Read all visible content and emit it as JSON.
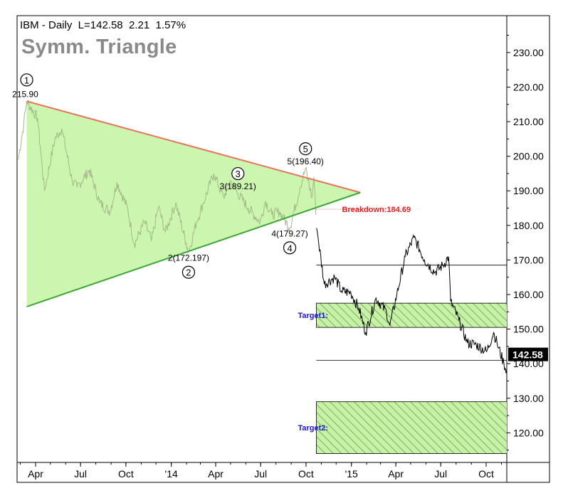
{
  "header": {
    "info_line": "IBM - Daily  L=142.58  2.21  1.57%",
    "pattern_title": "Symm. Triangle"
  },
  "colors": {
    "triangle_fill": "#ccf5b0",
    "upper_line": "#e8735a",
    "lower_line": "#3aa833",
    "price_in_pattern": "#a4b889",
    "price": "#000000",
    "breakdown_text": "#e02020",
    "target_text": "#1a1ad0",
    "target_fill": "#c8f0a8",
    "target_hatch": "#5ca83c"
  },
  "chart_data": {
    "type": "line",
    "title": "IBM - Daily",
    "ylim": [
      110,
      240
    ],
    "y_ticks": [
      "230.00",
      "220.00",
      "210.00",
      "200.00",
      "190.00",
      "180.00",
      "170.00",
      "160.00",
      "150.00",
      "140.00",
      "130.00",
      "120.00"
    ],
    "x_ticks": [
      "Apr",
      "Jul",
      "Oct",
      "'14",
      "Apr",
      "Jul",
      "Oct",
      "'15",
      "Apr",
      "Jul",
      "Oct"
    ],
    "last_price": "142.58",
    "series": [
      {
        "dates": [
          "2013-02-25",
          "2013-03-08",
          "2013-03-14",
          "2013-04-05",
          "2013-04-19",
          "2013-05-10",
          "2013-05-24",
          "2013-06-14",
          "2013-06-24",
          "2013-07-19",
          "2013-08-09",
          "2013-08-30",
          "2013-09-13",
          "2013-10-04",
          "2013-10-18",
          "2013-11-08",
          "2013-11-22",
          "2013-12-06",
          "2013-12-20",
          "2014-01-10",
          "2014-01-31",
          "2014-02-05",
          "2014-02-21",
          "2014-03-07",
          "2014-03-28",
          "2014-04-17",
          "2014-04-30",
          "2014-05-16",
          "2014-06-06",
          "2014-06-30",
          "2014-07-11",
          "2014-07-24",
          "2014-08-08",
          "2014-08-29",
          "2014-09-19",
          "2014-09-30",
          "2014-10-13",
          "2014-10-17",
          "2014-10-21",
          "2014-10-24",
          "2014-11-07",
          "2014-11-28",
          "2014-12-12",
          "2014-12-31",
          "2015-01-16",
          "2015-01-30",
          "2015-02-20",
          "2015-03-13",
          "2015-03-20",
          "2015-04-03",
          "2015-04-20",
          "2015-05-08",
          "2015-05-29",
          "2015-06-19",
          "2015-07-06",
          "2015-07-17",
          "2015-07-21",
          "2015-08-07",
          "2015-08-24",
          "2015-09-11",
          "2015-10-02",
          "2015-10-16",
          "2015-10-23",
          "2015-11-06",
          "2015-11-13",
          "2015-11-20",
          "2015-11-25"
        ],
        "values": [
          199.0,
          209.5,
          215.9,
          211.0,
          190.0,
          205.0,
          208.0,
          193.0,
          191.0,
          196.0,
          186.5,
          184.0,
          192.5,
          185.0,
          174.5,
          181.0,
          175.5,
          185.5,
          178.0,
          186.5,
          175.0,
          172.197,
          181.0,
          186.5,
          195.0,
          188.0,
          193.0,
          189.21,
          185.0,
          181.0,
          187.0,
          183.0,
          184.0,
          179.27,
          191.0,
          196.4,
          188.0,
          194.0,
          183.0,
          178.0,
          163.0,
          165.0,
          161.0,
          160.5,
          156.0,
          149.0,
          159.0,
          155.0,
          151.0,
          160.0,
          171.0,
          176.5,
          170.0,
          166.5,
          168.5,
          171.0,
          158.0,
          152.5,
          146.0,
          145.5,
          143.5,
          149.0,
          146.0,
          140.0,
          137.5,
          141.5,
          142.58
        ]
      }
    ],
    "pattern": {
      "upper_line": [
        [
          "2013-03-14",
          215.9
        ],
        [
          "2015-01-19",
          189.5
        ]
      ],
      "lower_line": [
        [
          "2013-03-14",
          156.5
        ],
        [
          "2015-01-19",
          189.5
        ]
      ],
      "pivots": [
        {
          "id": "1",
          "label": "215.90",
          "date": "2013-03-14",
          "value": 215.9,
          "position": "above"
        },
        {
          "id": "2",
          "label": "2(172.197)",
          "date": "2014-02-05",
          "value": 172.197,
          "position": "below"
        },
        {
          "id": "3",
          "label": "3(189.21)",
          "date": "2014-05-16",
          "value": 189.21,
          "position": "above"
        },
        {
          "id": "4",
          "label": "4(179.27)",
          "date": "2014-08-29",
          "value": 179.27,
          "position": "below"
        },
        {
          "id": "5",
          "label": "5(196.40)",
          "date": "2014-09-30",
          "value": 196.4,
          "position": "above"
        }
      ],
      "breakdown": {
        "label": "Breakdown:184.69",
        "value": 184.69,
        "from": "2014-10-22",
        "to": "2015-01-19"
      }
    },
    "horizontal_lines": [
      168.5,
      141.0
    ],
    "targets": [
      {
        "label": "Target1:",
        "top": 157.5,
        "bottom": 150.5,
        "from": "2014-10-22",
        "to": "2015-11-30"
      },
      {
        "label": "Target2:",
        "top": 129.0,
        "bottom": 114.0,
        "from": "2014-10-22",
        "to": "2015-11-30"
      }
    ]
  }
}
